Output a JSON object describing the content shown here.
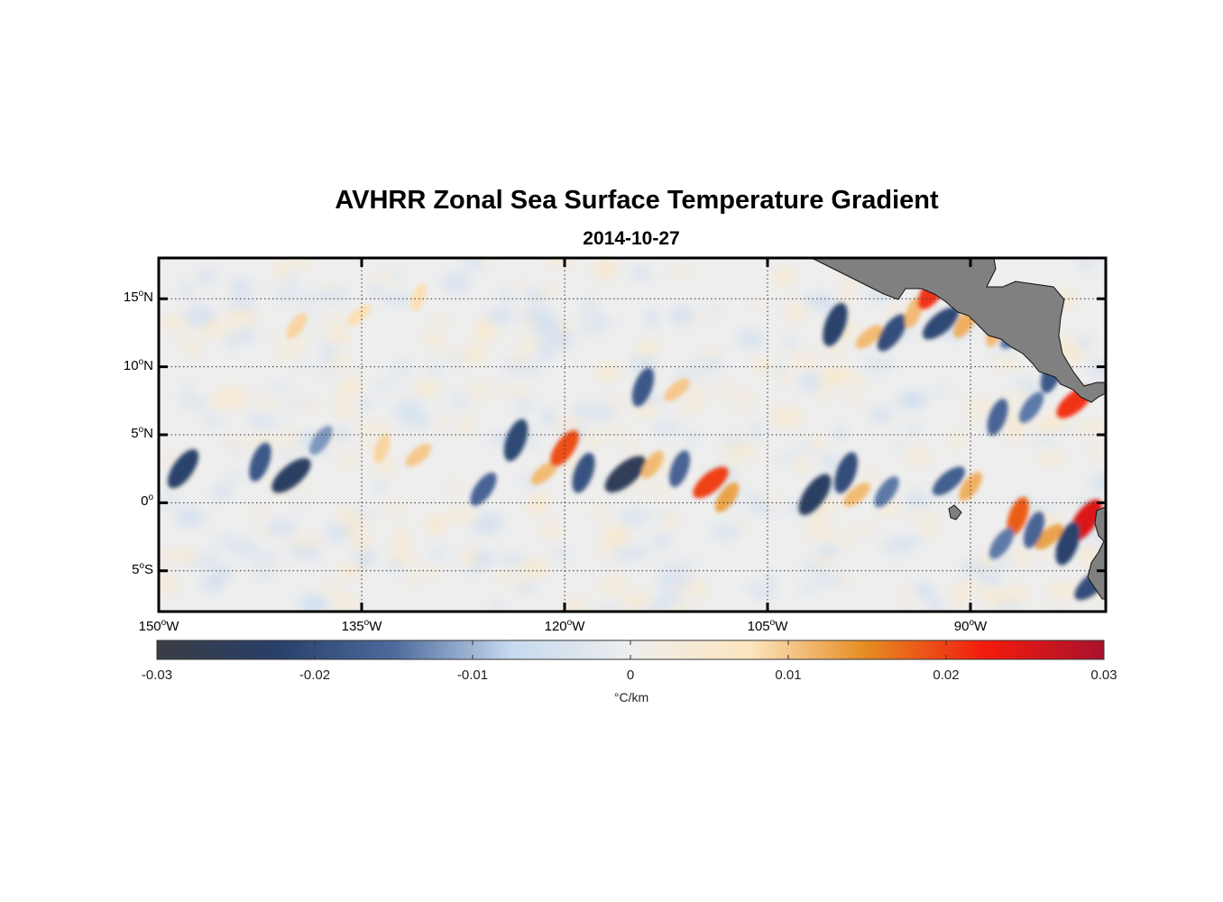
{
  "title": "AVHRR Zonal Sea Surface Temperature Gradient",
  "subtitle": "2014-10-27",
  "map": {
    "lon_range": [
      -150,
      -80
    ],
    "lat_range": [
      -8,
      18
    ],
    "lat_ticks": [
      {
        "deg": "15",
        "hemi": "N",
        "value": 15
      },
      {
        "deg": "10",
        "hemi": "N",
        "value": 10
      },
      {
        "deg": "5",
        "hemi": "N",
        "value": 5
      },
      {
        "deg": "0",
        "hemi": "",
        "value": 0
      },
      {
        "deg": "5",
        "hemi": "S",
        "value": -5
      }
    ],
    "lon_ticks": [
      {
        "deg": "150",
        "hemi": "W",
        "value": -150
      },
      {
        "deg": "135",
        "hemi": "W",
        "value": -135
      },
      {
        "deg": "120",
        "hemi": "W",
        "value": -120
      },
      {
        "deg": "105",
        "hemi": "W",
        "value": -105
      },
      {
        "deg": "90",
        "hemi": "W",
        "value": -90
      }
    ],
    "land_color": "#808080",
    "features": [
      {
        "lon": -148.2,
        "lat": 2.5,
        "value": -0.022
      },
      {
        "lon": -142.5,
        "lat": 3.0,
        "value": -0.018
      },
      {
        "lon": -140.2,
        "lat": 2.0,
        "value": -0.024
      },
      {
        "lon": -138.0,
        "lat": 4.6,
        "value": -0.012
      },
      {
        "lon": -133.5,
        "lat": 4.0,
        "value": 0.009
      },
      {
        "lon": -130.8,
        "lat": 3.5,
        "value": 0.01
      },
      {
        "lon": -126.0,
        "lat": 1.0,
        "value": -0.016
      },
      {
        "lon": -123.6,
        "lat": 4.6,
        "value": -0.021
      },
      {
        "lon": -121.5,
        "lat": 2.2,
        "value": 0.011
      },
      {
        "lon": -120.0,
        "lat": 4.0,
        "value": 0.019
      },
      {
        "lon": -118.6,
        "lat": 2.2,
        "value": -0.019
      },
      {
        "lon": -115.5,
        "lat": 2.1,
        "value": -0.026
      },
      {
        "lon": -113.5,
        "lat": 2.8,
        "value": 0.011
      },
      {
        "lon": -111.5,
        "lat": 2.5,
        "value": -0.016
      },
      {
        "lon": -109.2,
        "lat": 1.5,
        "value": 0.02
      },
      {
        "lon": -108.0,
        "lat": 0.4,
        "value": 0.013
      },
      {
        "lon": -114.2,
        "lat": 8.5,
        "value": -0.018
      },
      {
        "lon": -111.7,
        "lat": 8.3,
        "value": 0.01
      },
      {
        "lon": -139.8,
        "lat": 13.0,
        "value": 0.009
      },
      {
        "lon": -130.8,
        "lat": 15.1,
        "value": 0.008
      },
      {
        "lon": -135.2,
        "lat": 13.8,
        "value": 0.008
      },
      {
        "lon": -101.5,
        "lat": 0.6,
        "value": -0.024
      },
      {
        "lon": -99.2,
        "lat": 2.2,
        "value": -0.02
      },
      {
        "lon": -98.4,
        "lat": 0.6,
        "value": 0.011
      },
      {
        "lon": -96.2,
        "lat": 0.8,
        "value": -0.014
      },
      {
        "lon": -100.0,
        "lat": 13.1,
        "value": -0.022
      },
      {
        "lon": -97.5,
        "lat": 12.2,
        "value": 0.011
      },
      {
        "lon": -95.8,
        "lat": 12.5,
        "value": -0.02
      },
      {
        "lon": -94.2,
        "lat": 14.0,
        "value": 0.011
      },
      {
        "lon": -92.2,
        "lat": 13.2,
        "value": -0.021
      },
      {
        "lon": -90.4,
        "lat": 13.2,
        "value": 0.012
      },
      {
        "lon": -88.2,
        "lat": 12.6,
        "value": 0.011
      },
      {
        "lon": -86.7,
        "lat": 12.3,
        "value": -0.014
      },
      {
        "lon": -92.8,
        "lat": 15.6,
        "value": 0.021
      },
      {
        "lon": -84.0,
        "lat": 9.5,
        "value": -0.018
      },
      {
        "lon": -82.3,
        "lat": 7.4,
        "value": 0.021
      },
      {
        "lon": -85.5,
        "lat": 7.0,
        "value": -0.014
      },
      {
        "lon": -88.0,
        "lat": 6.3,
        "value": -0.016
      },
      {
        "lon": -91.6,
        "lat": 1.6,
        "value": -0.017
      },
      {
        "lon": -90.0,
        "lat": 1.2,
        "value": 0.012
      },
      {
        "lon": -86.5,
        "lat": -1.0,
        "value": 0.018
      },
      {
        "lon": -84.2,
        "lat": -2.5,
        "value": 0.013
      },
      {
        "lon": -81.5,
        "lat": -1.3,
        "value": 0.025
      },
      {
        "lon": -82.8,
        "lat": -3.0,
        "value": -0.022
      },
      {
        "lon": -81.0,
        "lat": -6.0,
        "value": -0.02
      },
      {
        "lon": -87.7,
        "lat": -3.0,
        "value": -0.014
      },
      {
        "lon": -85.3,
        "lat": -2.0,
        "value": -0.016
      }
    ]
  },
  "colorbar": {
    "ticks": [
      "-0.03",
      "-0.02",
      "-0.01",
      "0",
      "0.01",
      "0.02",
      "0.03"
    ],
    "range": [
      -0.03,
      0.03
    ],
    "unit": "°C/km",
    "colors": [
      "#3a3d44",
      "#283f69",
      "#4d6a9c",
      "#c7daef",
      "#eeeeee",
      "#fde6c0",
      "#e58a20",
      "#f41a0e",
      "#a8122d"
    ]
  }
}
